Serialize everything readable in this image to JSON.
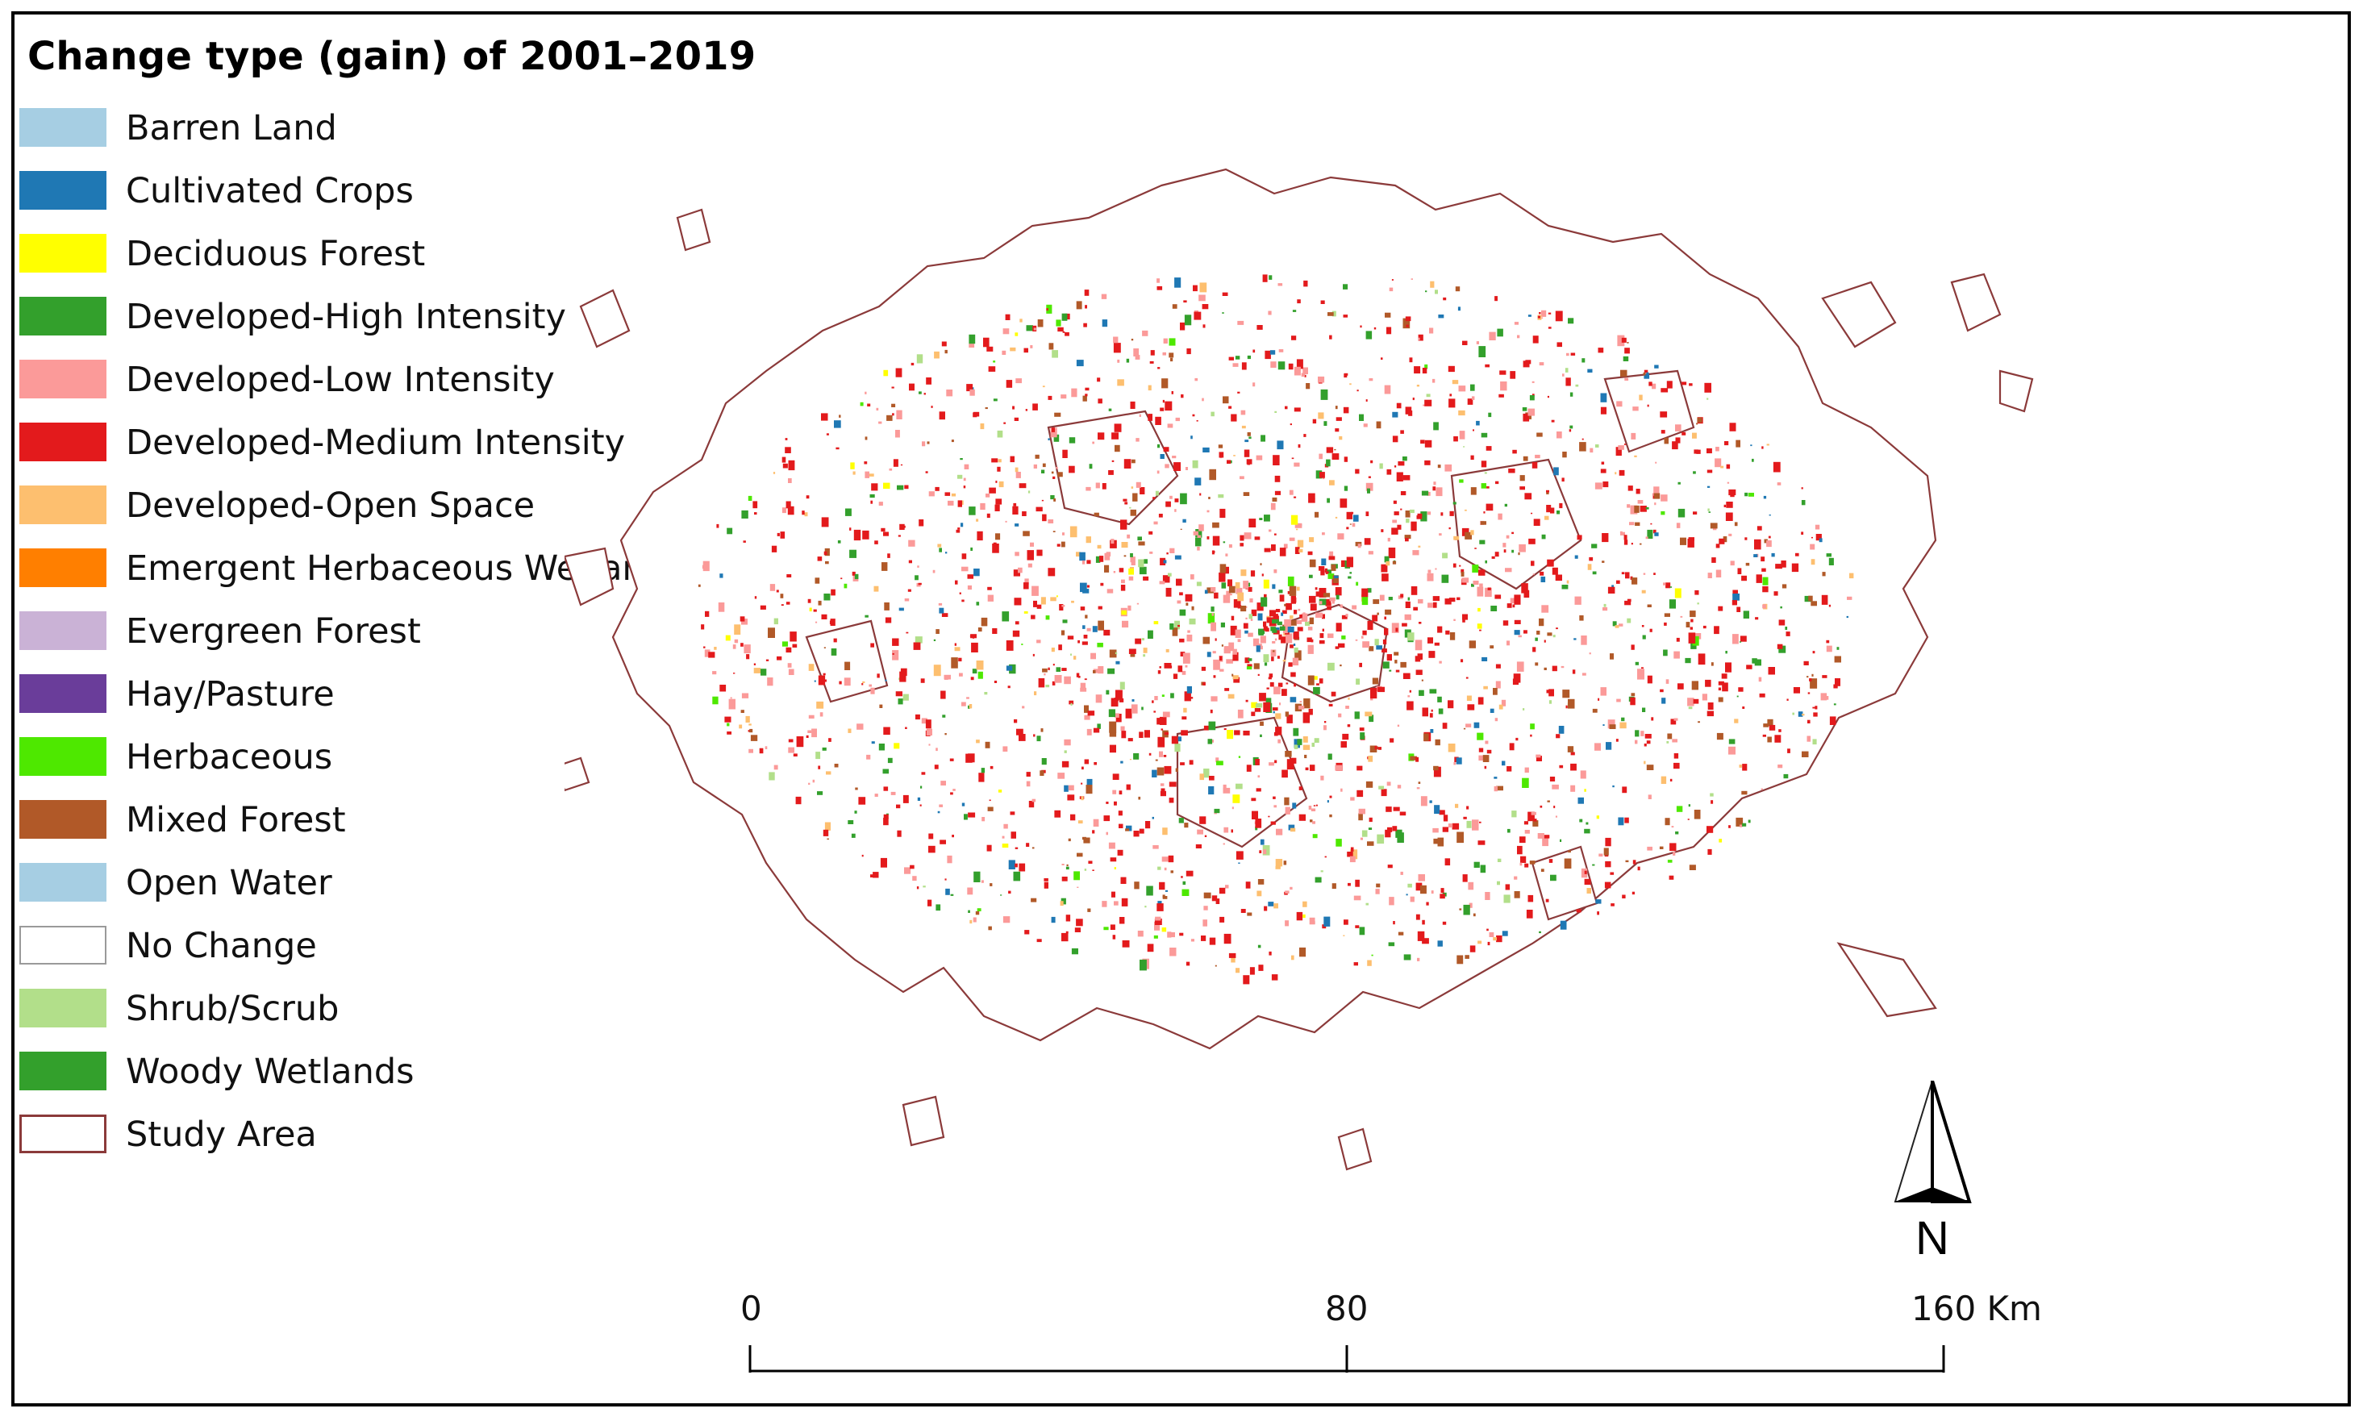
{
  "title": "Change type (gain) of 2001–2019",
  "legend": {
    "items": [
      {
        "label": "Barren Land",
        "color": "#a6cee3"
      },
      {
        "label": "Cultivated Crops",
        "color": "#1f78b4"
      },
      {
        "label": "Deciduous Forest",
        "color": "#ffff00"
      },
      {
        "label": "Developed-High Intensity",
        "color": "#33a02c"
      },
      {
        "label": "Developed-Low Intensity",
        "color": "#fb9a99"
      },
      {
        "label": "Developed-Medium Intensity",
        "color": "#e31a1c"
      },
      {
        "label": "Developed-Open Space",
        "color": "#fdbf6f"
      },
      {
        "label": "Emergent Herbaceous Wetlands",
        "color": "#ff7f00"
      },
      {
        "label": "Evergreen Forest",
        "color": "#cab2d6"
      },
      {
        "label": "Hay/Pasture",
        "color": "#6a3d9a"
      },
      {
        "label": "Herbaceous",
        "color": "#4ee800"
      },
      {
        "label": "Mixed Forest",
        "color": "#b15928"
      },
      {
        "label": "Open Water",
        "color": "#a6cee3"
      },
      {
        "label": "No Change",
        "color": "#ffffff"
      },
      {
        "label": "Shrub/Scrub",
        "color": "#b2df8a"
      },
      {
        "label": "Woody Wetlands",
        "color": "#33a02c"
      },
      {
        "label": "Study Area",
        "color": "#ffffff",
        "outline": "#8b3a3a"
      }
    ]
  },
  "scale_bar": {
    "labels": [
      "0",
      "80",
      "160 Km"
    ]
  },
  "north_arrow": {
    "label": "N",
    "icon": "north-arrow-icon"
  },
  "colors": {
    "boundary": "#8b3a3a",
    "frame": "#000000"
  }
}
